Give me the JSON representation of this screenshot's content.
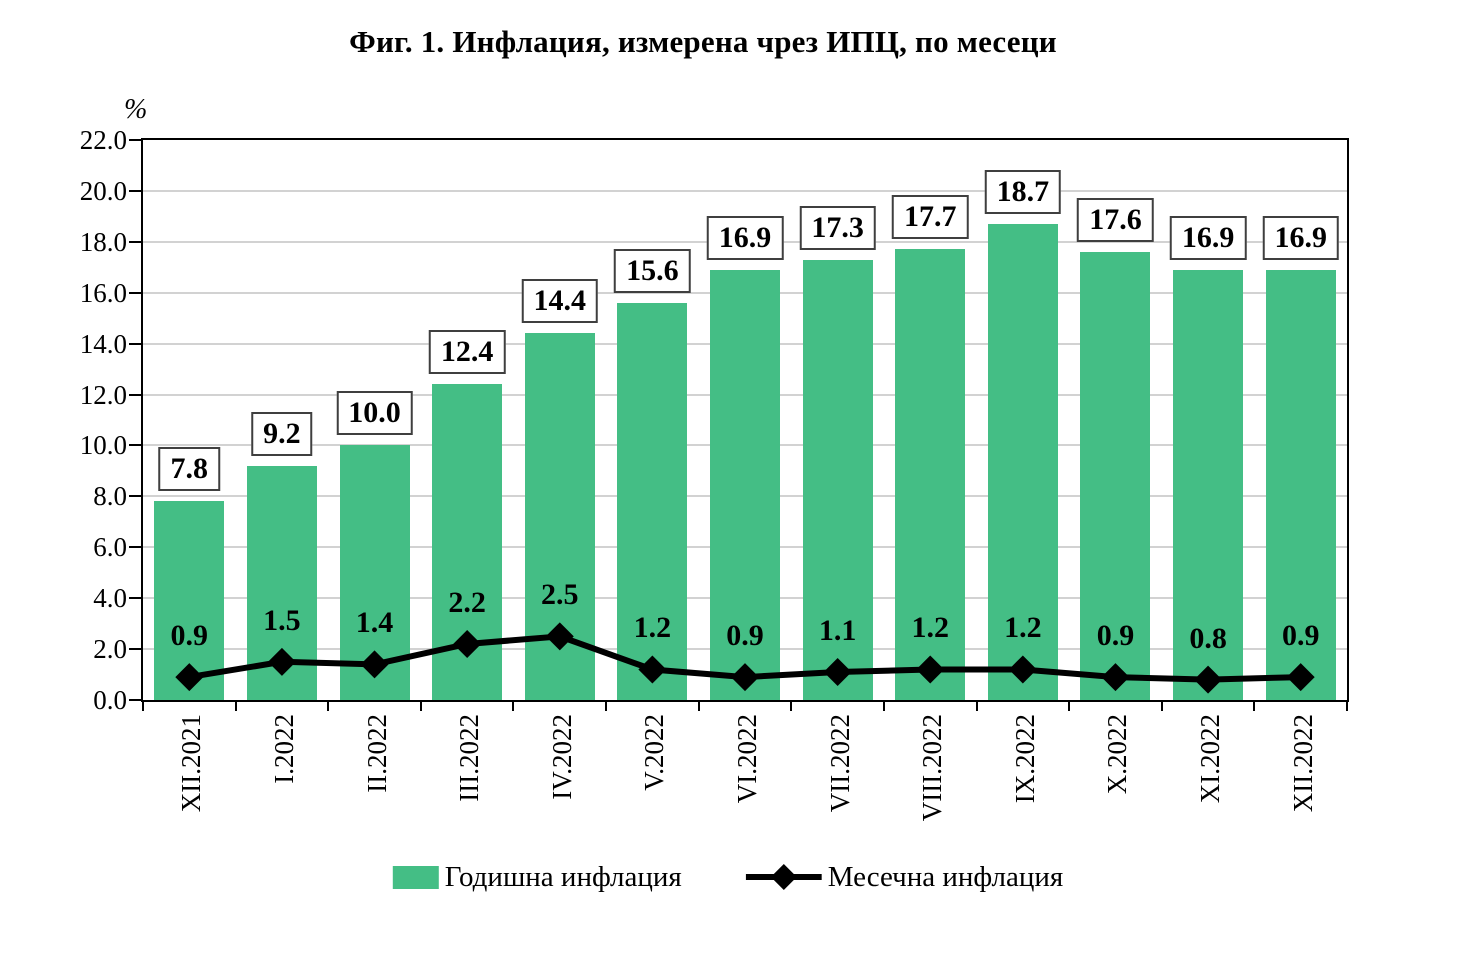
{
  "title": "Фиг. 1. Инфлация, измерена чрез ИПЦ, по месеци",
  "chart_data": {
    "type": "bar",
    "combo": "bar+line",
    "title": "Фиг. 1. Инфлация, измерена чрез ИПЦ, по месеци",
    "categories": [
      "XII.2021",
      "I.2022",
      "II.2022",
      "III.2022",
      "IV.2022",
      "V.2022",
      "VI.2022",
      "VII.2022",
      "VIII.2022",
      "IX.2022",
      "X.2022",
      "XI.2022",
      "XII.2022"
    ],
    "series": [
      {
        "name": "Годишна инфлация",
        "type": "bar",
        "color": "#44be85",
        "values": [
          7.8,
          9.2,
          10.0,
          12.4,
          14.4,
          15.6,
          16.9,
          17.3,
          17.7,
          18.7,
          17.6,
          16.9,
          16.9
        ]
      },
      {
        "name": "Месечна инфлация",
        "type": "line",
        "color": "#000000",
        "marker": "diamond",
        "values": [
          0.9,
          1.5,
          1.4,
          2.2,
          2.5,
          1.2,
          0.9,
          1.1,
          1.2,
          1.2,
          0.9,
          0.8,
          0.9
        ]
      }
    ],
    "xlabel": "",
    "ylabel": "%",
    "ylim": [
      0,
      22
    ],
    "ytick_step": 2,
    "grid": true,
    "legend_position": "bottom",
    "colors": {
      "bar": "#44be85",
      "line": "#000000",
      "gridline": "#d2d2d2",
      "axis": "#000000",
      "label_box_border": "#3f3f3f",
      "label_box_bg": "#ffffff"
    }
  }
}
